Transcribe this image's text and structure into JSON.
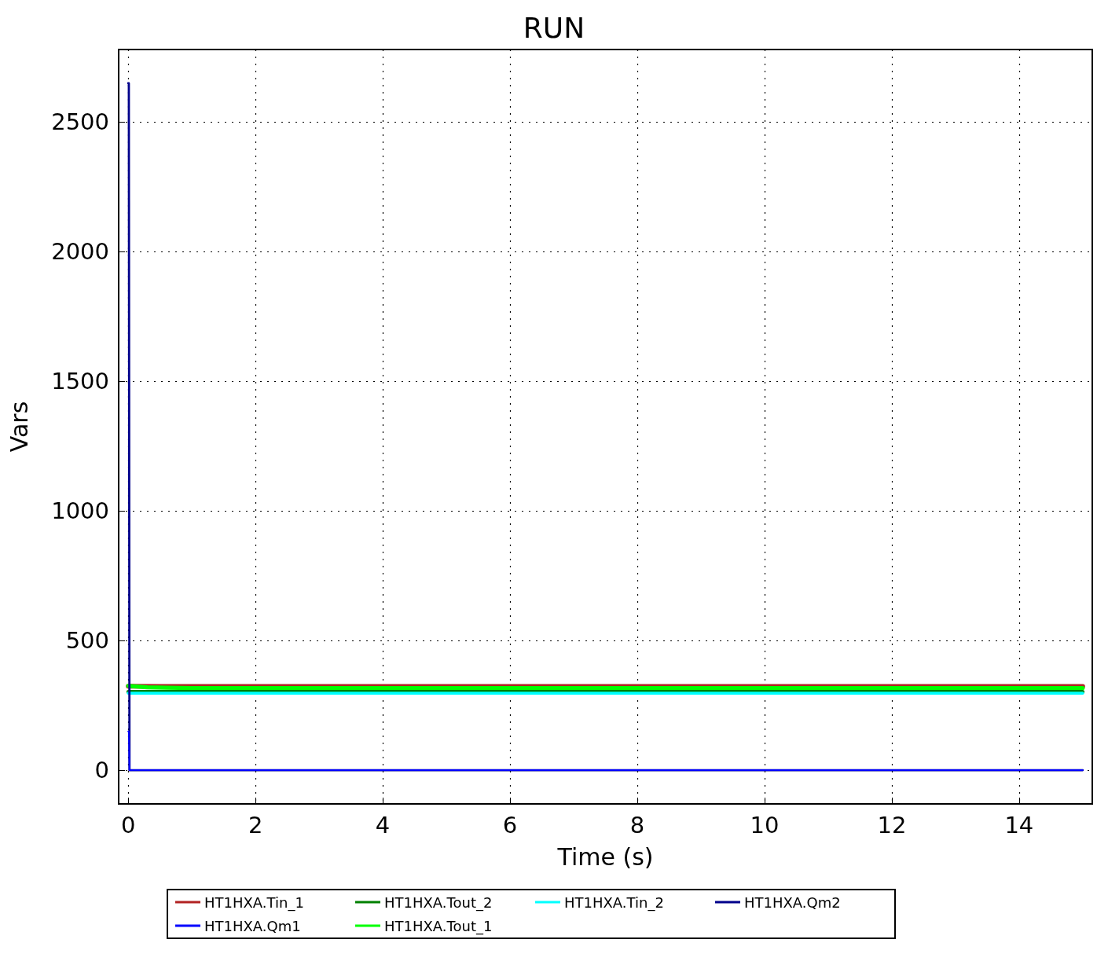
{
  "chart_data": {
    "type": "line",
    "title": "RUN",
    "xlabel": "Time (s)",
    "ylabel": "Vars",
    "xlim": [
      -0.15,
      15.15
    ],
    "xticks": [
      0,
      2,
      4,
      6,
      8,
      10,
      12,
      14
    ],
    "ylim": [
      -130,
      2780
    ],
    "yticks": [
      0,
      500,
      1000,
      1500,
      2000,
      2500
    ],
    "grid": true,
    "legend": "bottom",
    "marker": "none",
    "line_style": "solid",
    "series": [
      {
        "name": "HT1HXA.Tin_1",
        "color": "#b22222",
        "x": [
          0,
          0.5,
          1,
          15
        ],
        "values": [
          324,
          323,
          323,
          323
        ]
      },
      {
        "name": "HT1HXA.Tout_1",
        "color": "#00ff00",
        "x": [
          0,
          0.3,
          0.6,
          1,
          15
        ],
        "values": [
          325,
          320,
          318,
          317,
          317
        ]
      },
      {
        "name": "HT1HXA.Tout_2",
        "color": "#008000",
        "x": [
          0,
          15
        ],
        "values": [
          303,
          303
        ]
      },
      {
        "name": "HT1HXA.Tin_2",
        "color": "#00ffff",
        "x": [
          0,
          15
        ],
        "values": [
          297,
          297
        ]
      },
      {
        "name": "HT1HXA.Qm2",
        "color": "#00008b",
        "x": [
          0,
          0.01,
          0.02,
          15
        ],
        "values": [
          2650,
          2650,
          0,
          0
        ]
      },
      {
        "name": "HT1HXA.Qm1",
        "color": "#0000ff",
        "x": [
          0,
          0.01,
          0.02,
          15
        ],
        "values": [
          150,
          150,
          0,
          0
        ]
      }
    ]
  }
}
